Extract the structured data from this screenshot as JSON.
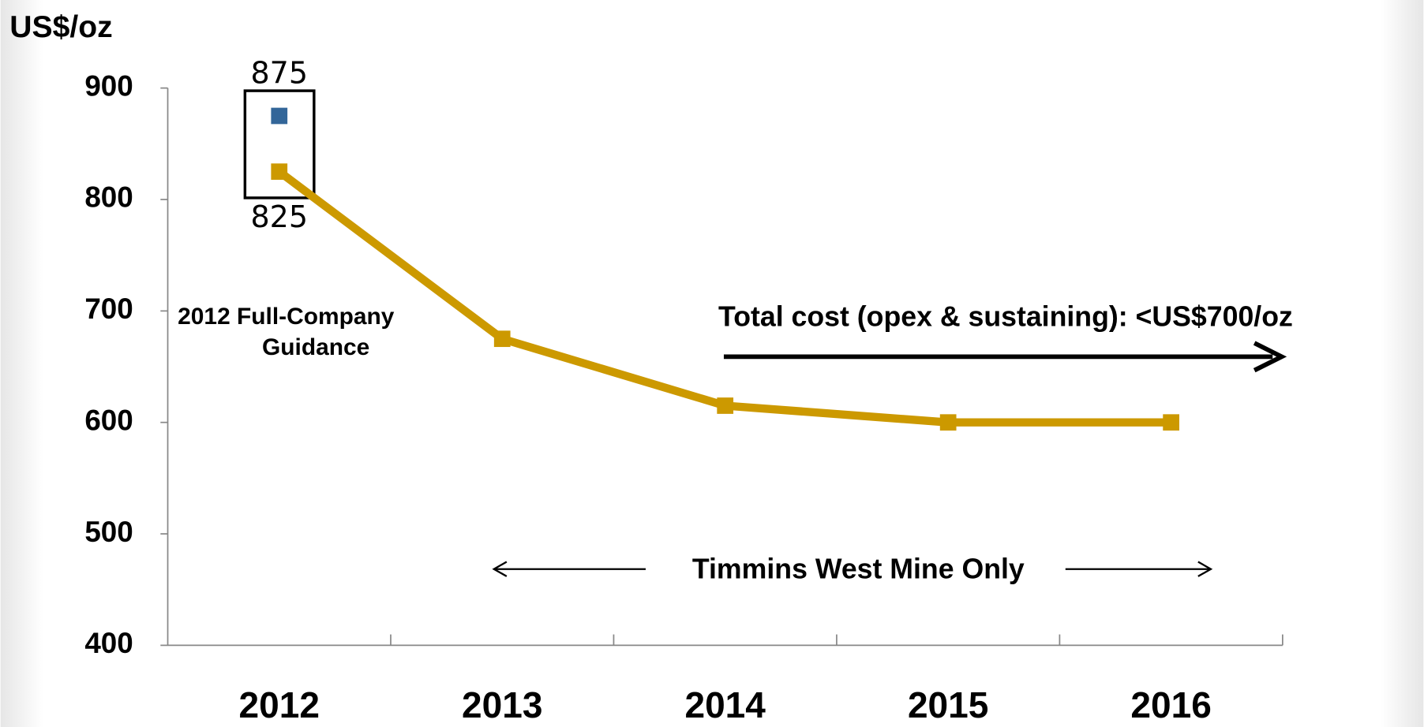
{
  "chart_data": {
    "type": "line",
    "y_label": "US$/oz",
    "categories": [
      "2012",
      "2013",
      "2014",
      "2015",
      "2016"
    ],
    "series": [
      {
        "color": "#cc9900",
        "values": [
          825,
          675,
          615,
          600,
          600
        ],
        "value_labels": [
          "825",
          null,
          null,
          null,
          null
        ]
      },
      {
        "color": "#336699",
        "values": [
          875,
          null,
          null,
          null,
          null
        ],
        "value_labels": [
          "875",
          null,
          null,
          null,
          null
        ],
        "marker_only": true
      }
    ],
    "ylim": [
      400,
      900
    ],
    "yticks": [
      400,
      500,
      600,
      700,
      800,
      900
    ],
    "annotations": [
      "2012 Full-Company",
      "Guidance",
      "Total cost (opex & sustaining): <US$700/oz",
      "Timmins West Mine Only"
    ]
  }
}
